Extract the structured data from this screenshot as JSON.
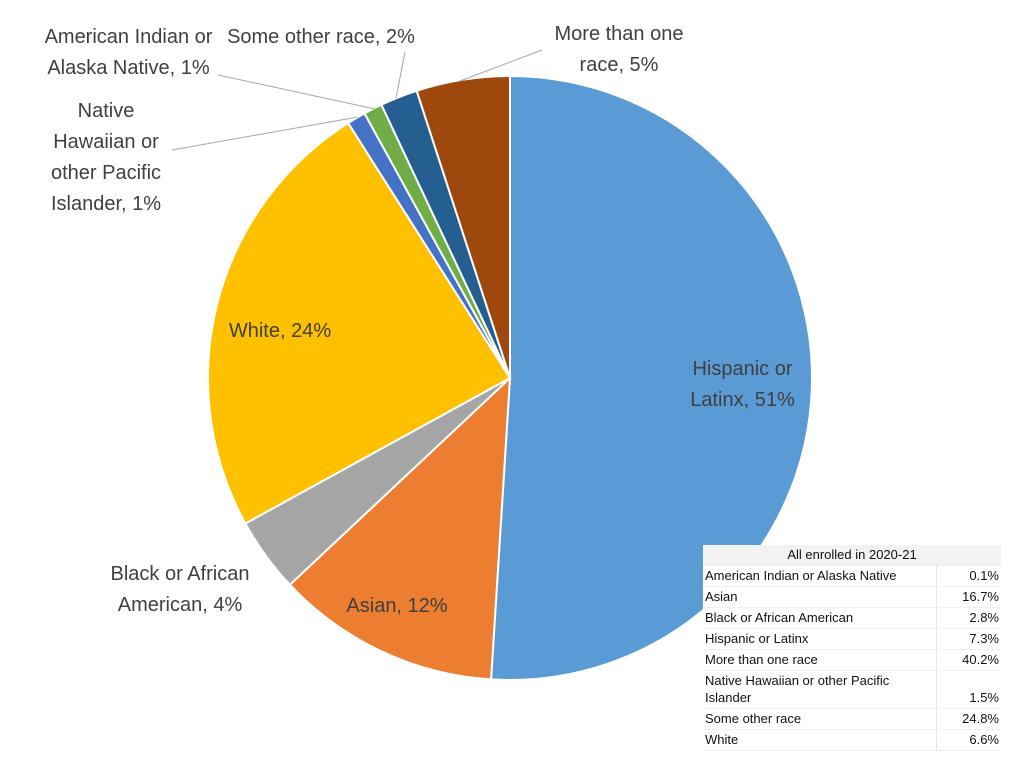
{
  "chart_data": {
    "type": "pie",
    "slices": [
      {
        "label": "Hispanic or Latinx, 51%",
        "value": 51,
        "color": "#5b9bd5"
      },
      {
        "label": "Asian, 12%",
        "value": 12,
        "color": "#ed7d31"
      },
      {
        "label": "Black or African American, 4%",
        "value": 4,
        "color": "#a5a5a5"
      },
      {
        "label": "White, 24%",
        "value": 24,
        "color": "#ffc000"
      },
      {
        "label": "Native Hawaiian or other Pacific Islander, 1%",
        "value": 1,
        "color": "#4472c4"
      },
      {
        "label": "American Indian or Alaska Native, 1%",
        "value": 1,
        "color": "#70ad47"
      },
      {
        "label": "Some other race, 2%",
        "value": 2,
        "color": "#255e91"
      },
      {
        "label": "More than one race, 5%",
        "value": 5,
        "color": "#9e480e"
      }
    ]
  },
  "table": {
    "title": "All enrolled in 2020-21",
    "rows": [
      {
        "label": "American Indian or Alaska Native",
        "value": "0.1%"
      },
      {
        "label": "Asian",
        "value": "16.7%"
      },
      {
        "label": "Black or African American",
        "value": "2.8%"
      },
      {
        "label": "Hispanic or Latinx",
        "value": "7.3%"
      },
      {
        "label": "More than one race",
        "value": "40.2%"
      },
      {
        "label": "Native Hawaiian or other Pacific Islander",
        "value": "1.5%"
      },
      {
        "label": "Some other race",
        "value": "24.8%"
      },
      {
        "label": "White",
        "value": "6.6%"
      }
    ]
  }
}
